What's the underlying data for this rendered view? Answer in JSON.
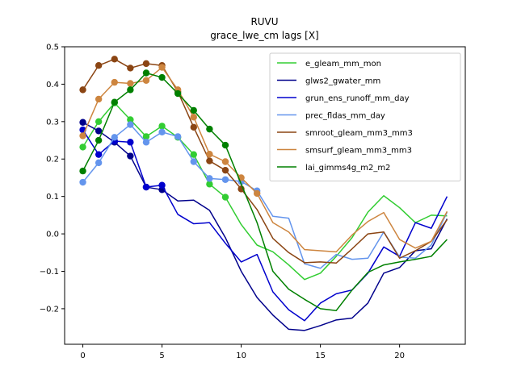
{
  "chart_data": {
    "type": "line",
    "title": "RUVU",
    "subtitle": "grace_lwe_cm lags [X]",
    "xlabel": "",
    "ylabel": "",
    "xlim": [
      -1.15,
      24.15
    ],
    "ylim": [
      -0.295,
      0.5
    ],
    "xticks": [
      0,
      5,
      10,
      15,
      20
    ],
    "yticks": [
      -0.2,
      -0.1,
      0.0,
      0.1,
      0.2,
      0.3,
      0.4,
      0.5
    ],
    "ytick_labels": [
      "−0.2",
      "−0.1",
      "0.0",
      "0.1",
      "0.2",
      "0.3",
      "0.4",
      "0.5"
    ],
    "x": [
      0,
      1,
      2,
      3,
      4,
      5,
      6,
      7,
      8,
      9,
      10,
      11,
      12,
      13,
      14,
      15,
      16,
      17,
      18,
      19,
      20,
      21,
      22,
      23
    ],
    "legend_position": "top-right",
    "grid": false,
    "series": [
      {
        "name": "e_gleam_mm_mon",
        "color": "#32cd32",
        "values": [
          0.232,
          0.3,
          0.35,
          0.305,
          0.26,
          0.288,
          0.258,
          0.212,
          0.133,
          0.098,
          0.025,
          -0.03,
          -0.048,
          -0.083,
          -0.122,
          -0.105,
          -0.06,
          -0.01,
          0.058,
          0.102,
          0.07,
          0.03,
          0.05,
          0.048
        ],
        "markers": 10
      },
      {
        "name": "glws2_gwater_mm",
        "color": "#00008b",
        "values": [
          0.298,
          0.275,
          0.245,
          0.208,
          0.125,
          0.118,
          0.088,
          0.09,
          0.063,
          -0.01,
          -0.1,
          -0.17,
          -0.217,
          -0.255,
          -0.258,
          -0.245,
          -0.23,
          -0.225,
          -0.185,
          -0.105,
          -0.09,
          -0.045,
          -0.04,
          0.04
        ],
        "markers": 6
      },
      {
        "name": "grun_ens_runoff_mm_day",
        "color": "#0000cd",
        "values": [
          0.278,
          0.212,
          0.248,
          0.245,
          0.125,
          0.13,
          0.052,
          0.027,
          0.03,
          -0.025,
          -0.075,
          -0.055,
          -0.155,
          -0.203,
          -0.232,
          -0.185,
          -0.16,
          -0.15,
          -0.105,
          -0.035,
          -0.06,
          0.03,
          0.015,
          0.1
        ],
        "markers": 6
      },
      {
        "name": "prec_fldas_mm_day",
        "color": "#6495ed",
        "values": [
          0.138,
          0.19,
          0.258,
          0.292,
          0.245,
          0.272,
          0.26,
          0.193,
          0.148,
          0.145,
          0.14,
          0.115,
          0.047,
          0.042,
          -0.08,
          -0.092,
          -0.055,
          -0.068,
          -0.065,
          0.005,
          -0.062,
          -0.065,
          -0.03,
          0.058
        ],
        "markers": 12
      },
      {
        "name": "smroot_gleam_mm3_mm3",
        "color": "#8b4513",
        "values": [
          0.385,
          0.45,
          0.467,
          0.443,
          0.455,
          0.45,
          0.38,
          0.285,
          0.195,
          0.17,
          0.12,
          0.065,
          -0.012,
          -0.05,
          -0.077,
          -0.075,
          -0.078,
          -0.04,
          0.0,
          0.005,
          -0.065,
          -0.045,
          -0.02,
          0.038
        ],
        "markers": 11
      },
      {
        "name": "smsurf_gleam_mm3_mm3",
        "color": "#cd853f",
        "values": [
          0.262,
          0.36,
          0.405,
          0.402,
          0.41,
          0.445,
          0.385,
          0.312,
          0.213,
          0.193,
          0.15,
          0.108,
          0.03,
          0.005,
          -0.042,
          -0.045,
          -0.048,
          -0.003,
          0.033,
          0.057,
          -0.015,
          -0.038,
          -0.02,
          0.06
        ],
        "markers": 12
      },
      {
        "name": "lai_gimms4g_m2_m2",
        "color": "#008000",
        "values": [
          0.168,
          0.25,
          0.352,
          0.385,
          0.43,
          0.418,
          0.375,
          0.33,
          0.28,
          0.237,
          0.133,
          0.03,
          -0.1,
          -0.148,
          -0.175,
          -0.2,
          -0.205,
          -0.15,
          -0.103,
          -0.083,
          -0.075,
          -0.068,
          -0.06,
          -0.015
        ],
        "markers": 10
      }
    ]
  }
}
